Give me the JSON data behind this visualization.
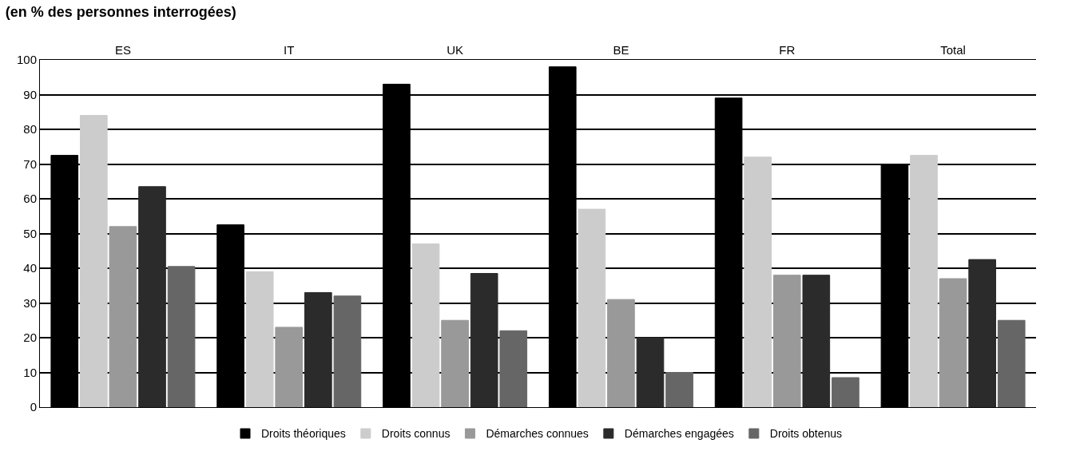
{
  "chart_data": {
    "type": "bar",
    "title": "(en % des personnes interrogées)",
    "categories": [
      "ES",
      "IT",
      "UK",
      "BE",
      "FR",
      "Total"
    ],
    "series": [
      {
        "name": "Droits théoriques",
        "color": "#000000",
        "values": [
          72.5,
          52.5,
          93,
          98,
          89,
          70
        ]
      },
      {
        "name": "Droits connus",
        "color": "#cccccc",
        "values": [
          84,
          39,
          47,
          57,
          72,
          72.5
        ]
      },
      {
        "name": "Démarches connues",
        "color": "#999999",
        "values": [
          52,
          23,
          25,
          31,
          38,
          37
        ]
      },
      {
        "name": "Démarches engagées",
        "color": "#2b2b2b",
        "values": [
          63.5,
          33,
          38.5,
          20,
          38,
          42.5
        ]
      },
      {
        "name": "Droits obtenus",
        "color": "#666666",
        "values": [
          40.5,
          32,
          22,
          10,
          8.5,
          25
        ]
      }
    ],
    "ylim": [
      0,
      100
    ],
    "yticks": [
      0,
      10,
      20,
      30,
      40,
      50,
      60,
      70,
      80,
      90,
      100
    ],
    "grid": "y",
    "legend": "bottom"
  }
}
